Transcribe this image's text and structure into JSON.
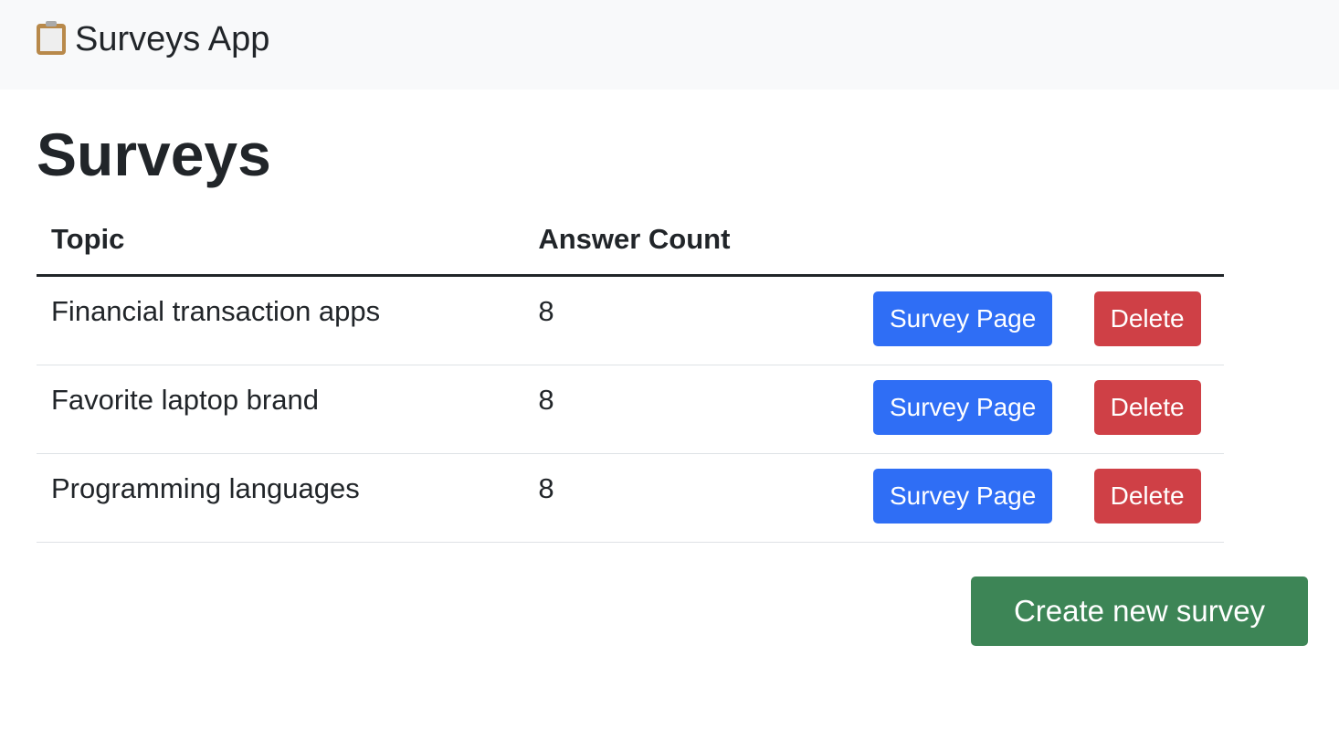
{
  "nav": {
    "icon": "clipboard-icon",
    "title": "Surveys App"
  },
  "page_title": "Surveys",
  "table": {
    "headers": [
      "Topic",
      "Answer Count"
    ],
    "rows": [
      {
        "topic": "Financial transaction apps",
        "count": "8"
      },
      {
        "topic": "Favorite laptop brand",
        "count": "8"
      },
      {
        "topic": "Programming languages",
        "count": "8"
      }
    ],
    "survey_label": "Survey Page",
    "delete_label": "Delete"
  },
  "create_label": "Create new survey"
}
